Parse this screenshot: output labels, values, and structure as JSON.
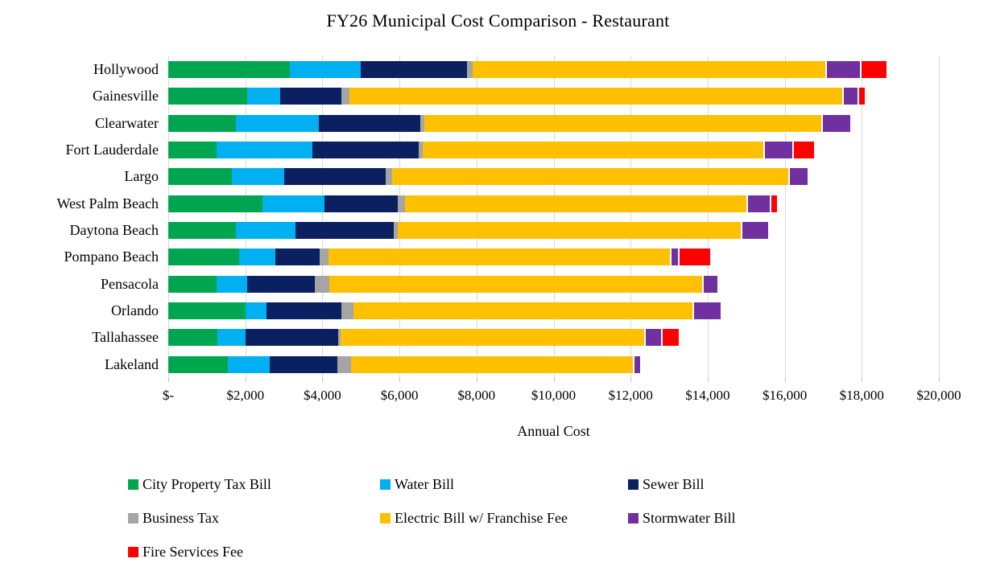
{
  "chart_data": {
    "type": "bar",
    "orientation": "horizontal",
    "stacked": true,
    "title": "FY26 Municipal Cost Comparison - Restaurant",
    "xlabel": "Annual Cost",
    "ylabel": "",
    "xlim": [
      0,
      20000
    ],
    "x_tick_interval": 2000,
    "x_tick_labels": [
      "$-",
      "$2,000",
      "$4,000",
      "$6,000",
      "$8,000",
      "$10,000",
      "$12,000",
      "$14,000",
      "$16,000",
      "$18,000",
      "$20,000"
    ],
    "grid": true,
    "gridline_color": "#d9d9d9",
    "legend_position": "bottom",
    "categories": [
      "Hollywood",
      "Gainesville",
      "Clearwater",
      "Fort Lauderdale",
      "Largo",
      "West Palm Beach",
      "Daytona Beach",
      "Pompano Beach",
      "Pensacola",
      "Orlando",
      "Tallahassee",
      "Lakeland"
    ],
    "series": [
      {
        "name": "City Property Tax Bill",
        "color": "#00a550",
        "values": [
          3150,
          2050,
          1750,
          1250,
          1650,
          2450,
          1750,
          1830,
          1250,
          2000,
          1280,
          1550
        ]
      },
      {
        "name": "Water Bill",
        "color": "#00b0f0",
        "values": [
          1850,
          850,
          2150,
          2500,
          1350,
          1600,
          1550,
          950,
          800,
          550,
          720,
          1080
        ]
      },
      {
        "name": "Sewer Bill",
        "color": "#0a2060",
        "values": [
          2750,
          1600,
          2650,
          2750,
          2650,
          1900,
          2550,
          1150,
          1750,
          1950,
          2400,
          1760
        ]
      },
      {
        "name": "Business Tax",
        "color": "#a5a5a5",
        "values": [
          150,
          200,
          100,
          100,
          150,
          200,
          110,
          220,
          380,
          310,
          70,
          350
        ]
      },
      {
        "name": "Electric Bill w/ Franchise Fee",
        "color": "#ffc000",
        "values": [
          9150,
          12800,
          10300,
          8850,
          10300,
          8850,
          8900,
          8880,
          9680,
          8800,
          7880,
          7310
        ]
      },
      {
        "name": "Stormwater Bill",
        "color": "#7030a0",
        "values": [
          900,
          380,
          750,
          750,
          490,
          620,
          720,
          200,
          400,
          720,
          440,
          200
        ]
      },
      {
        "name": "Fire Services Fee",
        "color": "#ff0000",
        "values": [
          700,
          200,
          0,
          570,
          0,
          180,
          0,
          830,
          0,
          0,
          460,
          0
        ]
      }
    ],
    "totals": [
      18650,
      18080,
      17700,
      16770,
      16590,
      15800,
      15580,
      14060,
      14260,
      14330,
      13250,
      12250
    ]
  }
}
